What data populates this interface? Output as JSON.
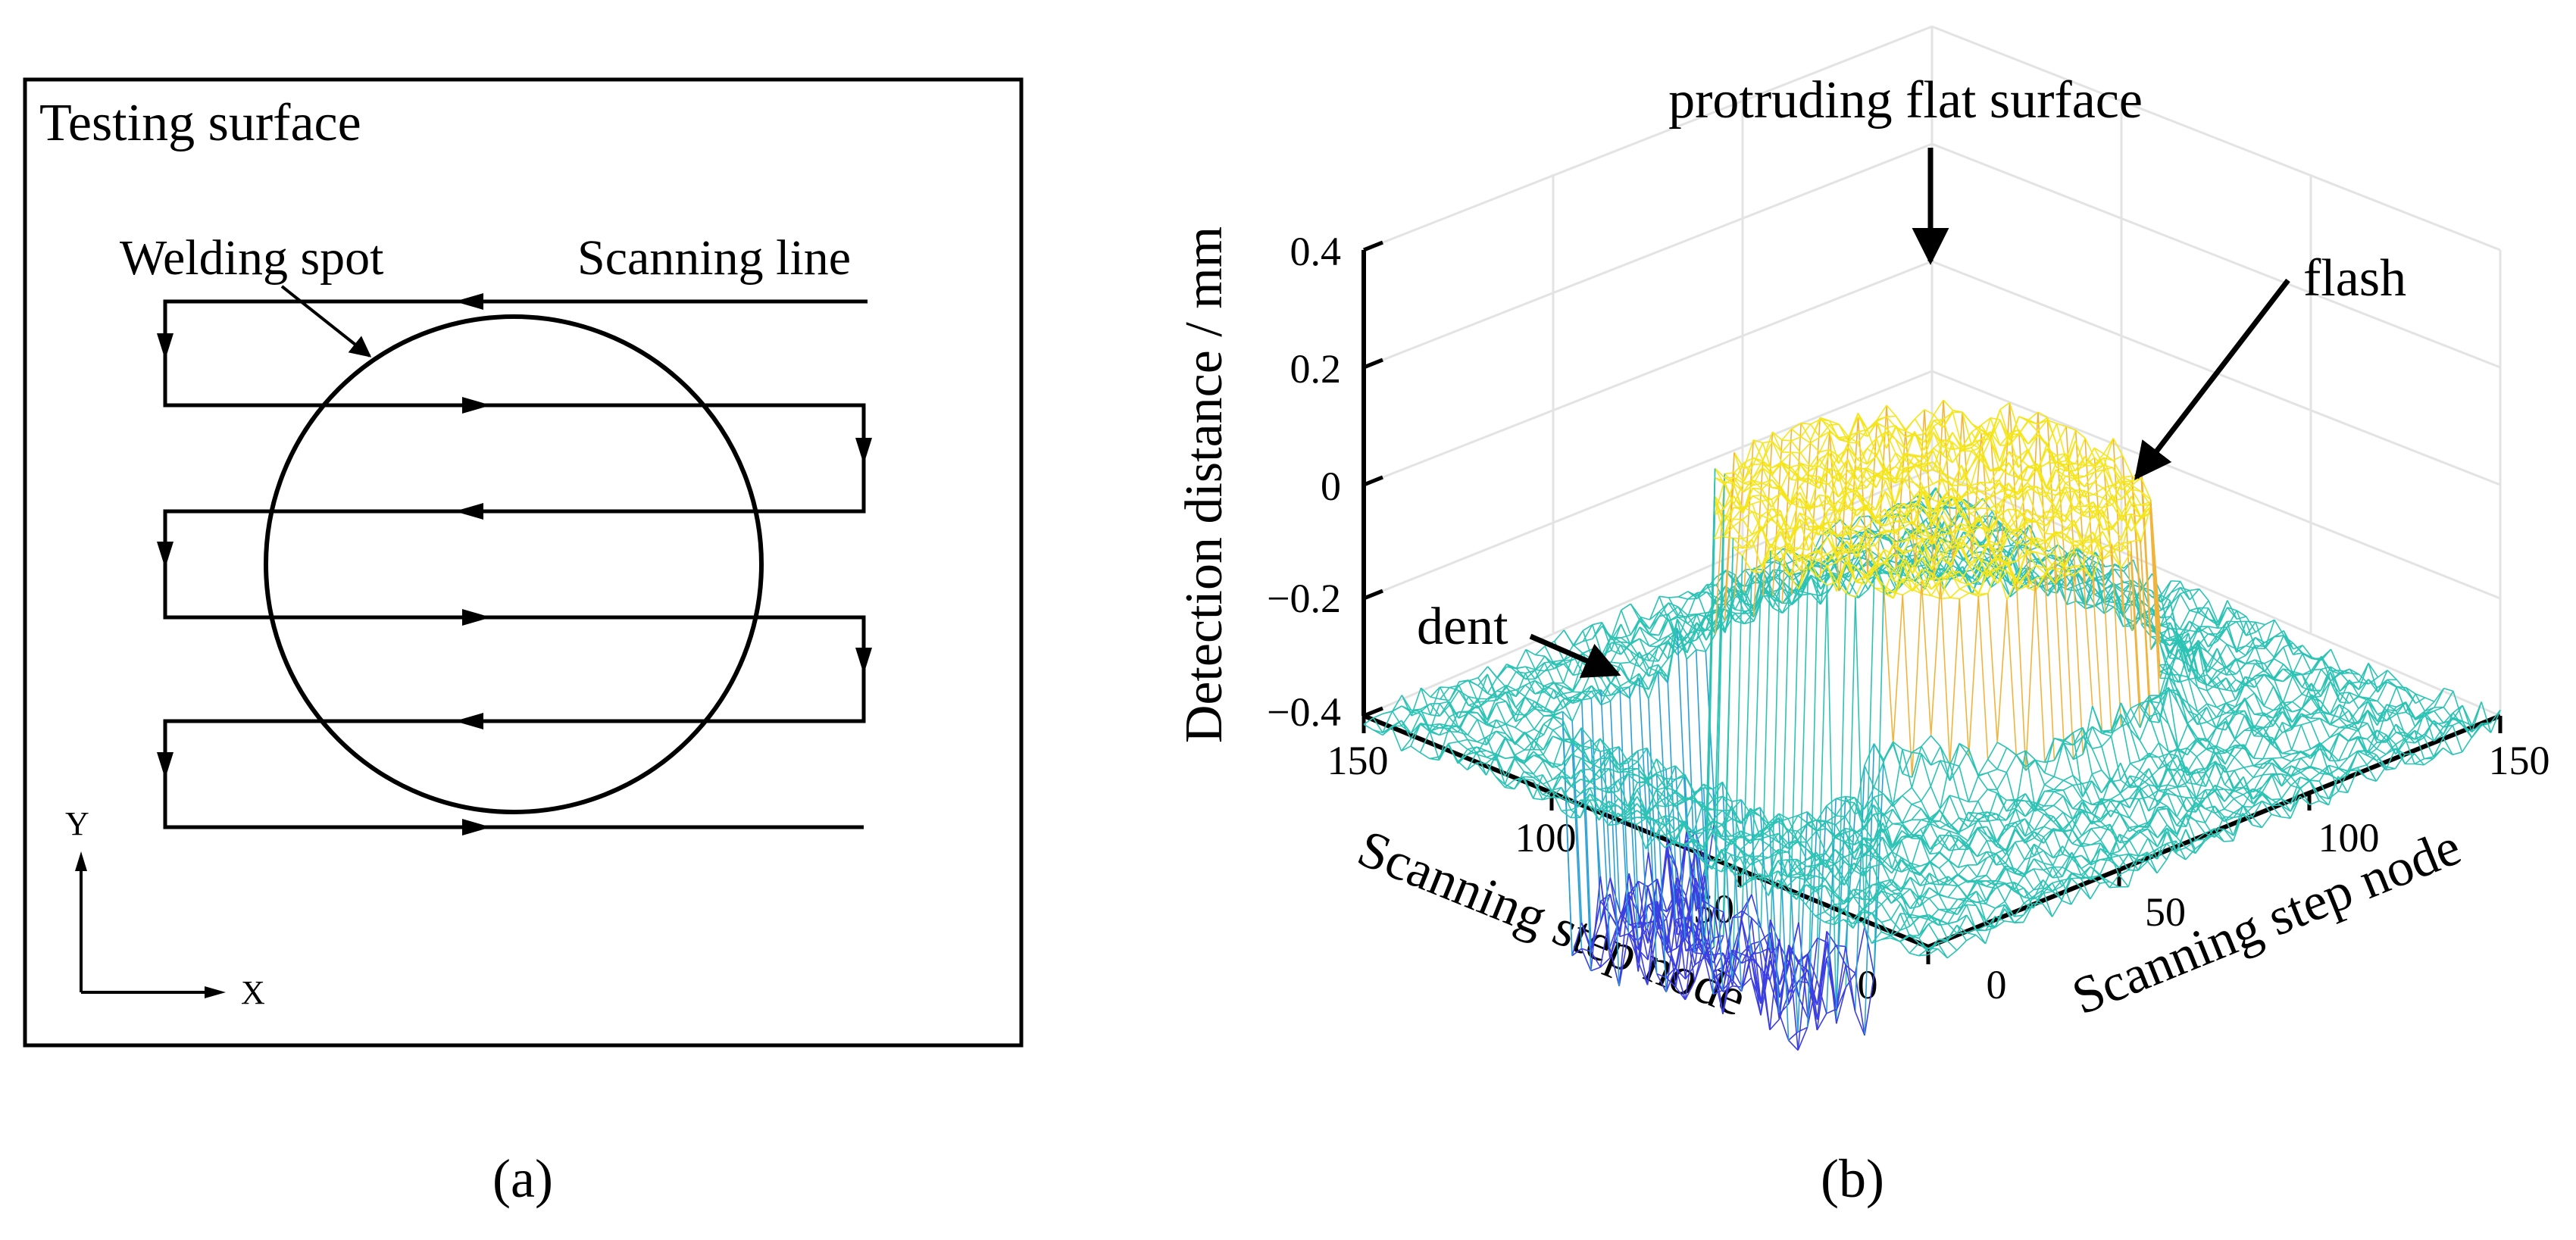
{
  "panel_a": {
    "box_title": "Testing surface",
    "welding_spot_label": "Welding spot",
    "scanning_line_label": "Scanning line",
    "axis_y": "Y",
    "axis_x": "X",
    "caption": "(a)"
  },
  "panel_b": {
    "caption": "(b)",
    "z_label": "Detection distance  / mm",
    "x_label": "Scanning step node",
    "y_label": "Scanning step node",
    "annotations": {
      "top": "protruding flat surface",
      "right": "flash",
      "left": "dent"
    },
    "z_ticks": [
      "0.4",
      "0.2",
      "0",
      "−0.2",
      "−0.4"
    ],
    "x_ticks": [
      "150",
      "100",
      "50",
      "0"
    ],
    "y_ticks": [
      "0",
      "50",
      "100",
      "150"
    ],
    "colors": {
      "high": "#f5e61c",
      "mid_high": "#f0b43c",
      "base": "#2cc3b5",
      "mid_low": "#2a9fd6",
      "low": "#3c3fe0"
    }
  }
}
